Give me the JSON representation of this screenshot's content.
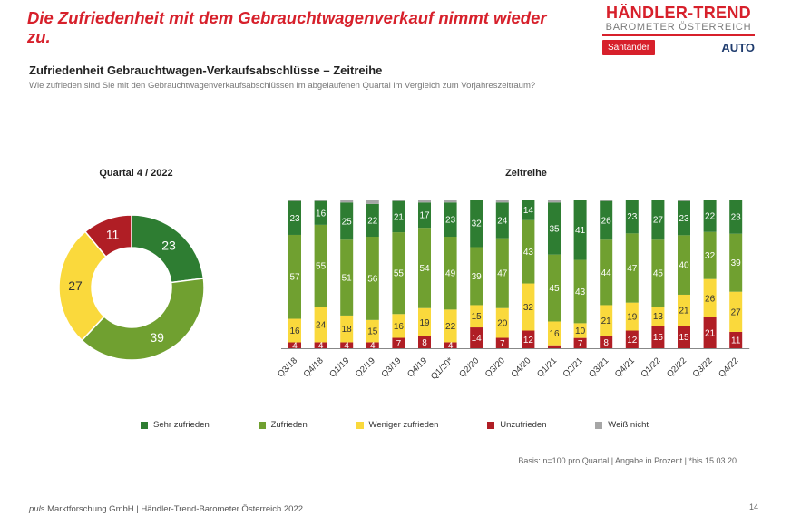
{
  "headline": "Die Zufriedenheit mit dem Gebrauchtwagenverkauf nimmt wieder zu.",
  "logo": {
    "brand": "HÄNDLER-TREND",
    "sub": "BAROMETER ÖSTERREICH",
    "partner1": "Santander",
    "partner2": "AUTO"
  },
  "subtitle": "Zufriedenheit Gebrauchtwagen-Verkaufsabschlüsse – Zeitreihe",
  "question": "Wie zufrieden sind Sie mit den Gebrauchtwagenverkaufsabschlüssen im abgelaufenen Quartal im Vergleich zum Vorjahreszeitraum?",
  "colors": {
    "sehr": "#2e7d32",
    "zufrieden": "#70a030",
    "weniger": "#fad93c",
    "unzufrieden": "#b01e25",
    "weiss": "#a6a6a6"
  },
  "legend": [
    "Sehr zufrieden",
    "Zufrieden",
    "Weniger zufrieden",
    "Unzufrieden",
    "Weiß nicht"
  ],
  "basis": "Basis: n=100 pro Quartal | Angabe in Prozent | *bis 15.03.20",
  "footer": {
    "brand": "puls",
    "rest": " Marktforschung GmbH | Händler-Trend-Barometer Österreich 2022"
  },
  "page_number": "14",
  "chart_data": [
    {
      "type": "pie",
      "title": "Quartal 4 / 2022",
      "categories": [
        "Sehr zufrieden",
        "Zufrieden",
        "Weniger zufrieden",
        "Unzufrieden"
      ],
      "values": [
        23,
        39,
        27,
        11
      ],
      "donut": true
    },
    {
      "type": "bar",
      "stacked": true,
      "title": "Zeitreihe",
      "categories": [
        "Q3/18",
        "Q4/18",
        "Q1/19",
        "Q2/19",
        "Q3/19",
        "Q4/19",
        "Q1/20*",
        "Q2/20",
        "Q3/20",
        "Q4/20",
        "Q1/21",
        "Q2/21",
        "Q3/21",
        "Q4/21",
        "Q1/22",
        "Q2/22",
        "Q3/22",
        "Q4/22"
      ],
      "series": [
        {
          "name": "Unzufrieden",
          "values": [
            4,
            4,
            4,
            4,
            7,
            8,
            4,
            14,
            7,
            12,
            2,
            7,
            8,
            12,
            15,
            15,
            21,
            11
          ]
        },
        {
          "name": "Weniger zufrieden",
          "values": [
            16,
            24,
            18,
            15,
            16,
            19,
            22,
            15,
            20,
            32,
            16,
            10,
            21,
            19,
            13,
            21,
            26,
            27
          ]
        },
        {
          "name": "Zufrieden",
          "values": [
            57,
            55,
            51,
            56,
            55,
            54,
            49,
            39,
            47,
            43,
            45,
            43,
            44,
            47,
            45,
            40,
            32,
            39
          ]
        },
        {
          "name": "Sehr zufrieden",
          "values": [
            23,
            16,
            25,
            22,
            21,
            17,
            23,
            32,
            24,
            14,
            35,
            41,
            26,
            23,
            27,
            23,
            22,
            23
          ]
        },
        {
          "name": "Weiß nicht",
          "values": [
            1,
            1,
            2,
            3,
            1,
            2,
            2,
            0,
            2,
            0,
            2,
            0,
            1,
            0,
            0,
            1,
            0,
            0
          ]
        }
      ],
      "data_labels": {
        "Unzufrieden": [
          "4",
          "4",
          "4",
          "4",
          "7",
          "8",
          "4",
          "14",
          "7",
          "12",
          "",
          "7",
          "8",
          "12",
          "15",
          "15",
          "21",
          "11"
        ],
        "Weniger zufrieden": [
          "16",
          "24",
          "18",
          "15",
          "16",
          "19",
          "22",
          "15",
          "20",
          "32",
          "16",
          "10",
          "21",
          "19",
          "13",
          "21",
          "26",
          "27"
        ],
        "Zufrieden": [
          "57",
          "55",
          "51",
          "56",
          "55",
          "54",
          "49",
          "39",
          "47",
          "43",
          "45",
          "43",
          "44",
          "47",
          "45",
          "40",
          "32",
          "39"
        ],
        "Sehr zufrieden": [
          "23",
          "16",
          "25",
          "22",
          "21",
          "17",
          "23",
          "32",
          "24",
          "14",
          "35",
          "41",
          "26",
          "23",
          "27",
          "23",
          "22",
          "23"
        ]
      },
      "ylim": [
        0,
        100
      ]
    }
  ]
}
